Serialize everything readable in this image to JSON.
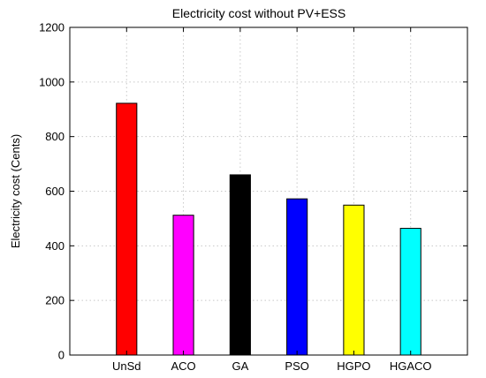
{
  "chart_data": {
    "type": "bar",
    "title": "Electricity cost without PV+ESS",
    "xlabel": "",
    "ylabel": "Electricity cost (Cents)",
    "categories": [
      "UnSd",
      "ACO",
      "GA",
      "PSO",
      "HGPO",
      "HGACO"
    ],
    "values": [
      922,
      512,
      660,
      572,
      549,
      464
    ],
    "colors": [
      "#ff0000",
      "#ff00ff",
      "#000000",
      "#0000ff",
      "#ffff00",
      "#00ffff"
    ],
    "ylim": [
      0,
      1200
    ],
    "yticks": [
      0,
      200,
      400,
      600,
      800,
      1000,
      1200
    ],
    "grid": true,
    "legend": "none"
  }
}
